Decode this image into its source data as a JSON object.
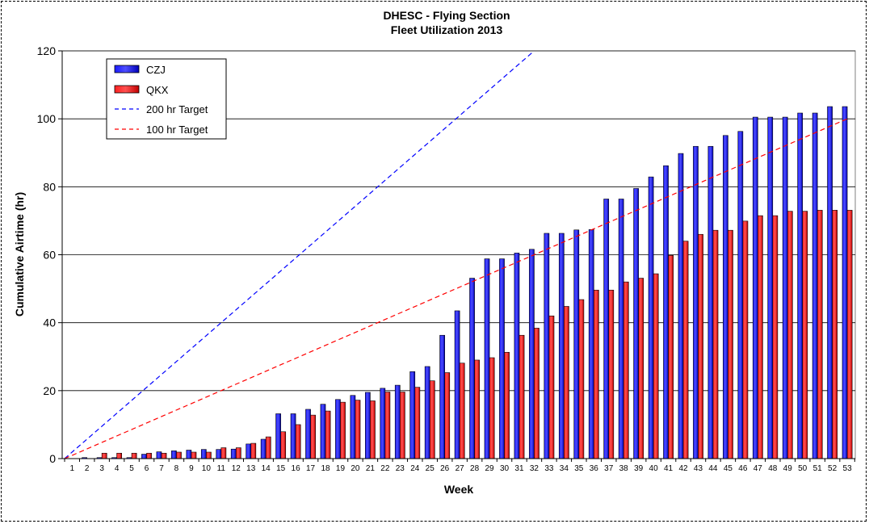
{
  "chart_data": {
    "type": "bar",
    "title": "DHESC - Flying Section",
    "subtitle": "Fleet Utilization 2013",
    "xlabel": "Week",
    "ylabel": "Cumulative Airtime (hr)",
    "ylim": [
      0,
      120
    ],
    "yticks": [
      "0",
      "20",
      "40",
      "60",
      "80",
      "100",
      "120"
    ],
    "grid": true,
    "legend_position": "top-left",
    "categories": [
      "1",
      "2",
      "3",
      "4",
      "5",
      "6",
      "7",
      "8",
      "9",
      "10",
      "11",
      "12",
      "13",
      "14",
      "15",
      "16",
      "17",
      "18",
      "19",
      "20",
      "21",
      "22",
      "23",
      "24",
      "25",
      "26",
      "27",
      "28",
      "29",
      "30",
      "31",
      "32",
      "33",
      "34",
      "35",
      "36",
      "37",
      "38",
      "39",
      "40",
      "41",
      "42",
      "43",
      "44",
      "45",
      "46",
      "47",
      "48",
      "49",
      "50",
      "51",
      "52",
      "53"
    ],
    "series": [
      {
        "name": "CZJ",
        "kind": "bar",
        "color": "#0000ff",
        "values": [
          0,
          0.3,
          0.3,
          0.3,
          0.3,
          1.3,
          2,
          2.3,
          2.5,
          2.7,
          2.7,
          2.8,
          4.3,
          5.7,
          13.2,
          13.2,
          14.5,
          16,
          17.4,
          18.6,
          19.5,
          20.7,
          21.6,
          25.6,
          27.1,
          36.3,
          43.5,
          53.1,
          58.8,
          58.8,
          60.5,
          61.6,
          66.3,
          66.3,
          67.3,
          67.4,
          76.4,
          76.4,
          79.5,
          82.9,
          86.2,
          89.8,
          91.9,
          91.9,
          95.1,
          96.3,
          100.5,
          100.5,
          100.5,
          101.7,
          101.7,
          103.6,
          103.6
        ]
      },
      {
        "name": "QKX",
        "kind": "bar",
        "color": "#ff0000",
        "values": [
          0,
          0,
          1.6,
          1.6,
          1.6,
          1.6,
          1.6,
          1.9,
          1.9,
          1.9,
          3.2,
          3.2,
          4.5,
          6.4,
          7.9,
          10,
          12.8,
          14,
          16.6,
          17.2,
          17,
          19.6,
          19.6,
          21,
          22.9,
          25.3,
          28.1,
          29,
          29.7,
          31.3,
          36.3,
          38.4,
          42,
          44.8,
          46.8,
          49.6,
          49.6,
          52,
          53.1,
          54.4,
          59.8,
          64,
          66,
          67.2,
          67.2,
          69.9,
          71.5,
          71.5,
          72.8,
          72.8,
          73.1,
          73.1,
          73.1
        ]
      },
      {
        "name": "200 hr Target",
        "kind": "line",
        "style": "dashed",
        "color": "#0000ff",
        "x": [
          "1",
          "32"
        ],
        "values": [
          0,
          120
        ]
      },
      {
        "name": "100 hr Target",
        "kind": "line",
        "style": "dashed",
        "color": "#ff0000",
        "x": [
          "1",
          "53"
        ],
        "values": [
          0,
          100
        ]
      }
    ]
  }
}
